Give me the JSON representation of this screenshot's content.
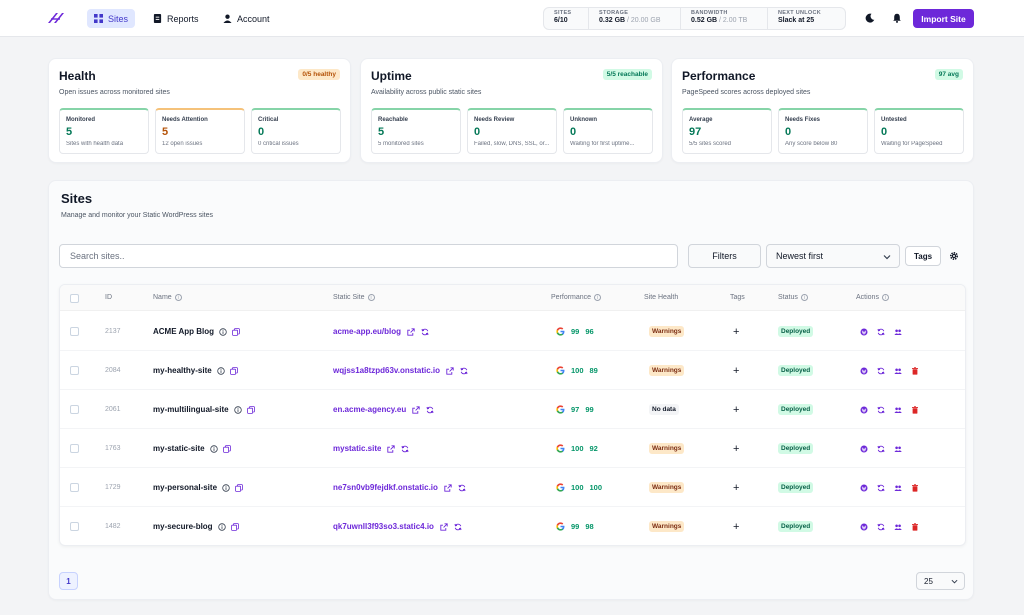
{
  "nav": {
    "items": [
      {
        "label": "Sites",
        "icon": "grid-icon",
        "active": true
      },
      {
        "label": "Reports",
        "icon": "document-icon",
        "active": false
      },
      {
        "label": "Account",
        "icon": "user-icon",
        "active": false
      }
    ],
    "stats": [
      {
        "label": "SITES",
        "value": "6/10",
        "muted": ""
      },
      {
        "label": "STORAGE",
        "value": "0.32 GB",
        "muted": " / 20.00 GB"
      },
      {
        "label": "BANDWIDTH",
        "value": "0.52 GB",
        "muted": " / 2.00 TB"
      },
      {
        "label": "NEXT UNLOCK",
        "value": "Slack at 25",
        "muted": ""
      }
    ],
    "import_label": "Import Site",
    "brand_color": "#6d28d9"
  },
  "summary": [
    {
      "title": "Health",
      "subtitle": "Open issues across monitored sites",
      "badge": "0/5 healthy",
      "badge_tone": "orange",
      "metrics": [
        {
          "label": "Monitored",
          "value": "5",
          "note": "Sites with health data",
          "tone": "green"
        },
        {
          "label": "Needs Attention",
          "value": "5",
          "note": "12 open issues",
          "tone": "orange"
        },
        {
          "label": "Critical",
          "value": "0",
          "note": "0 critical issues",
          "tone": "green"
        }
      ]
    },
    {
      "title": "Uptime",
      "subtitle": "Availability across public static sites",
      "badge": "5/5 reachable",
      "badge_tone": "green",
      "metrics": [
        {
          "label": "Reachable",
          "value": "5",
          "note": "5 monitored sites",
          "tone": "green"
        },
        {
          "label": "Needs Review",
          "value": "0",
          "note": "Failed, slow, DNS, SSL, or...",
          "tone": "green"
        },
        {
          "label": "Unknown",
          "value": "0",
          "note": "Waiting for first uptime...",
          "tone": "green"
        }
      ]
    },
    {
      "title": "Performance",
      "subtitle": "PageSpeed scores across deployed sites",
      "badge": "97 avg",
      "badge_tone": "green",
      "metrics": [
        {
          "label": "Average",
          "value": "97",
          "note": "5/5 sites scored",
          "tone": "green"
        },
        {
          "label": "Needs Fixes",
          "value": "0",
          "note": "Any score below 80",
          "tone": "green"
        },
        {
          "label": "Untested",
          "value": "0",
          "note": "Waiting for PageSpeed",
          "tone": "green"
        }
      ]
    }
  ],
  "sites": {
    "title": "Sites",
    "subtitle": "Manage and monitor your Static WordPress sites",
    "search_placeholder": "Search sites..",
    "filters_label": "Filters",
    "sort_value": "Newest first",
    "tags_label": "Tags",
    "columns": {
      "id": "ID",
      "name": "Name",
      "static": "Static Site",
      "performance": "Performance",
      "health": "Site Health",
      "tags": "Tags",
      "status": "Status",
      "actions": "Actions"
    },
    "rows": [
      {
        "id": "2137",
        "name": "ACME App Blog",
        "url": "acme-app.eu/blog",
        "perf": [
          "99",
          "96"
        ],
        "health": "Warnings",
        "status": "Deployed",
        "deletable": false
      },
      {
        "id": "2084",
        "name": "my-healthy-site",
        "url": "wqjss1a8tzpd63v.onstatic.io",
        "perf": [
          "100",
          "89"
        ],
        "health": "Warnings",
        "status": "Deployed",
        "deletable": true
      },
      {
        "id": "2061",
        "name": "my-multilingual-site",
        "url": "en.acme-agency.eu",
        "perf": [
          "97",
          "99"
        ],
        "health": "No data",
        "status": "Deployed",
        "deletable": true
      },
      {
        "id": "1763",
        "name": "my-static-site",
        "url": "mystatic.site",
        "perf": [
          "100",
          "92"
        ],
        "health": "Warnings",
        "status": "Deployed",
        "deletable": false
      },
      {
        "id": "1729",
        "name": "my-personal-site",
        "url": "ne7sn0vb9fejdkf.onstatic.io",
        "perf": [
          "100",
          "100"
        ],
        "health": "Warnings",
        "status": "Deployed",
        "deletable": true
      },
      {
        "id": "1482",
        "name": "my-secure-blog",
        "url": "qk7uwnll3f93so3.static4.io",
        "perf": [
          "99",
          "98"
        ],
        "health": "Warnings",
        "status": "Deployed",
        "deletable": true
      }
    ],
    "page": "1",
    "page_size": "25"
  }
}
